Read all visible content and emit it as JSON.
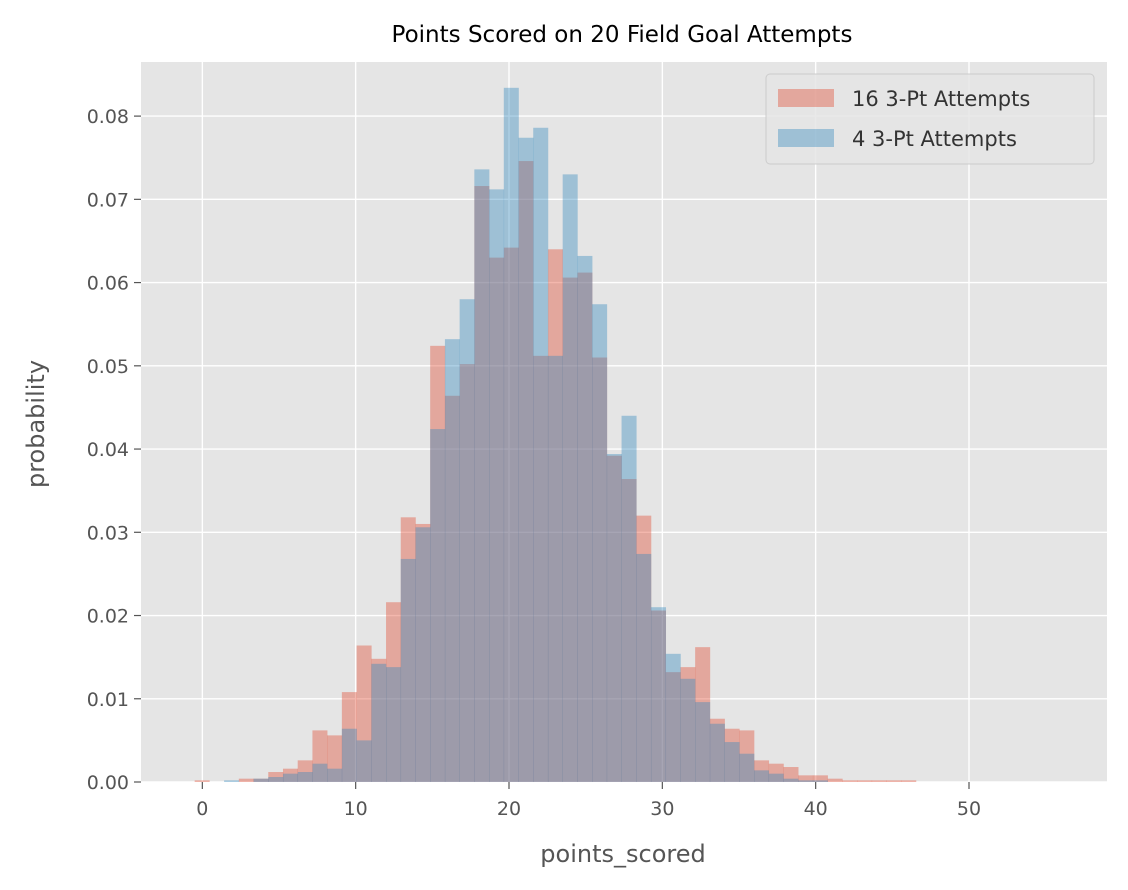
{
  "chart_data": {
    "type": "bar",
    "title": "Points Scored on 20 Field Goal Attempts",
    "xlabel": "points_scored",
    "ylabel": "probability",
    "xlim": [
      -4,
      59
    ],
    "ylim": [
      0,
      0.0865
    ],
    "xticks": [
      0,
      10,
      20,
      30,
      40,
      50
    ],
    "yticks": [
      0.0,
      0.01,
      0.02,
      0.03,
      0.04,
      0.05,
      0.06,
      0.07,
      0.08
    ],
    "ytick_labels": [
      "0.00",
      "0.01",
      "0.02",
      "0.03",
      "0.04",
      "0.05",
      "0.06",
      "0.07",
      "0.08"
    ],
    "grid": true,
    "legend_position": "top-right",
    "bin_width": 0.96,
    "bin_start": -0.5,
    "series": [
      {
        "name": "16 3-Pt Attempts",
        "color": "#E24A33",
        "values": [
          0.0002,
          0,
          0,
          0.0004,
          0.0004,
          0.0012,
          0.0016,
          0.0026,
          0.0062,
          0.0056,
          0.0108,
          0.0164,
          0.0148,
          0.0216,
          0.0318,
          0.031,
          0.0524,
          0.0464,
          0.0502,
          0.0716,
          0.063,
          0.0642,
          0.0746,
          0.0512,
          0.064,
          0.0606,
          0.0612,
          0.051,
          0.0392,
          0.0364,
          0.032,
          0.0206,
          0.0132,
          0.0138,
          0.0162,
          0.0076,
          0.0064,
          0.0062,
          0.0026,
          0.0022,
          0.0018,
          0.0008,
          0.0008,
          0.0004,
          0.0002,
          0.0002,
          0.0002,
          0.0002,
          0.0002
        ]
      },
      {
        "name": "4 3-Pt Attempts",
        "color": "#348ABD",
        "values": [
          0,
          0,
          0.0002,
          0,
          0.0004,
          0.0006,
          0.001,
          0.0012,
          0.0022,
          0.0016,
          0.0064,
          0.005,
          0.0142,
          0.0138,
          0.0268,
          0.0306,
          0.0424,
          0.0532,
          0.058,
          0.0736,
          0.0712,
          0.0834,
          0.0774,
          0.0786,
          0.0512,
          0.073,
          0.0632,
          0.0574,
          0.0394,
          0.044,
          0.0274,
          0.021,
          0.0154,
          0.0124,
          0.0096,
          0.007,
          0.0048,
          0.0034,
          0.0014,
          0.001,
          0.0004,
          0.0002,
          0.0002,
          0,
          0,
          0,
          0,
          0,
          0
        ]
      }
    ]
  }
}
